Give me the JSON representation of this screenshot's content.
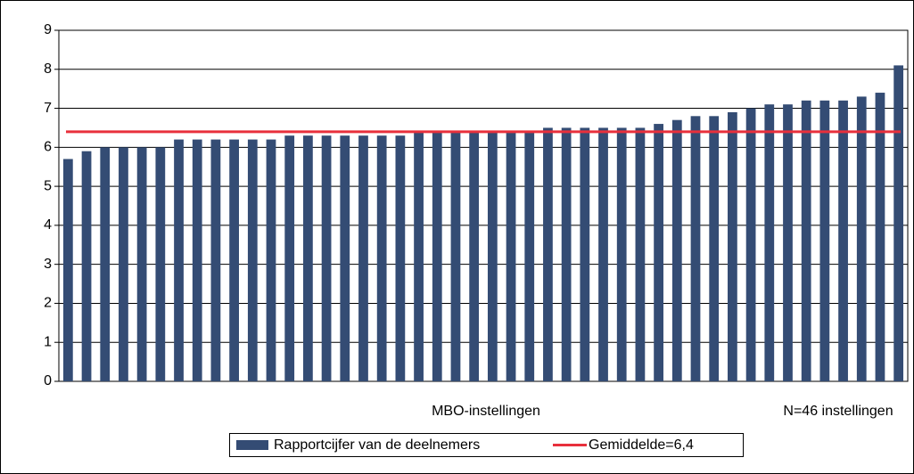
{
  "chart_data": {
    "type": "bar",
    "x_label": "MBO-instellingen",
    "annotation": "N=46 instellingen",
    "series": [
      {
        "name": "Rapportcijfer van de deelnemers",
        "color": "#344c74",
        "values": [
          5.7,
          5.9,
          6.0,
          6.0,
          6.0,
          6.0,
          6.2,
          6.2,
          6.2,
          6.2,
          6.2,
          6.2,
          6.3,
          6.3,
          6.3,
          6.3,
          6.3,
          6.3,
          6.3,
          6.4,
          6.4,
          6.4,
          6.4,
          6.4,
          6.4,
          6.4,
          6.5,
          6.5,
          6.5,
          6.5,
          6.5,
          6.5,
          6.6,
          6.7,
          6.8,
          6.8,
          6.9,
          7.0,
          7.1,
          7.1,
          7.2,
          7.2,
          7.2,
          7.3,
          7.4,
          8.1
        ]
      }
    ],
    "reference_line": {
      "name": "Gemiddelde=6,4",
      "value": 6.4,
      "color": "#e8303c"
    },
    "ylim": [
      0,
      9
    ],
    "yticks": [
      0,
      1,
      2,
      3,
      4,
      5,
      6,
      7,
      8,
      9
    ],
    "grid": true
  }
}
